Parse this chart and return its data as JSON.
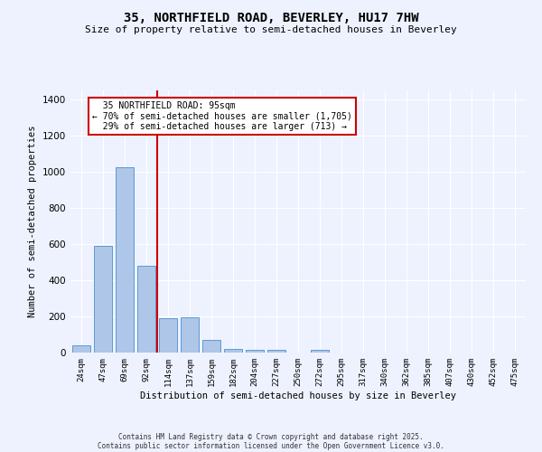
{
  "title_line1": "35, NORTHFIELD ROAD, BEVERLEY, HU17 7HW",
  "title_line2": "Size of property relative to semi-detached houses in Beverley",
  "xlabel": "Distribution of semi-detached houses by size in Beverley",
  "ylabel": "Number of semi-detached properties",
  "categories": [
    "24sqm",
    "47sqm",
    "69sqm",
    "92sqm",
    "114sqm",
    "137sqm",
    "159sqm",
    "182sqm",
    "204sqm",
    "227sqm",
    "250sqm",
    "272sqm",
    "295sqm",
    "317sqm",
    "340sqm",
    "362sqm",
    "385sqm",
    "407sqm",
    "430sqm",
    "452sqm",
    "475sqm"
  ],
  "values": [
    40,
    590,
    1025,
    480,
    190,
    195,
    70,
    20,
    15,
    15,
    0,
    15,
    0,
    0,
    0,
    0,
    0,
    0,
    0,
    0,
    0
  ],
  "bar_color": "#aec6e8",
  "bar_edge_color": "#5b9bd5",
  "vline_x": 3.5,
  "vline_color": "#cc0000",
  "annotation_text": "  35 NORTHFIELD ROAD: 95sqm\n← 70% of semi-detached houses are smaller (1,705)\n  29% of semi-detached houses are larger (713) →",
  "annotation_box_color": "#ffffff",
  "annotation_box_edge": "#cc0000",
  "ylim": [
    0,
    1450
  ],
  "background_color": "#eef2ff",
  "grid_color": "#ffffff",
  "footer_line1": "Contains HM Land Registry data © Crown copyright and database right 2025.",
  "footer_line2": "Contains public sector information licensed under the Open Government Licence v3.0."
}
